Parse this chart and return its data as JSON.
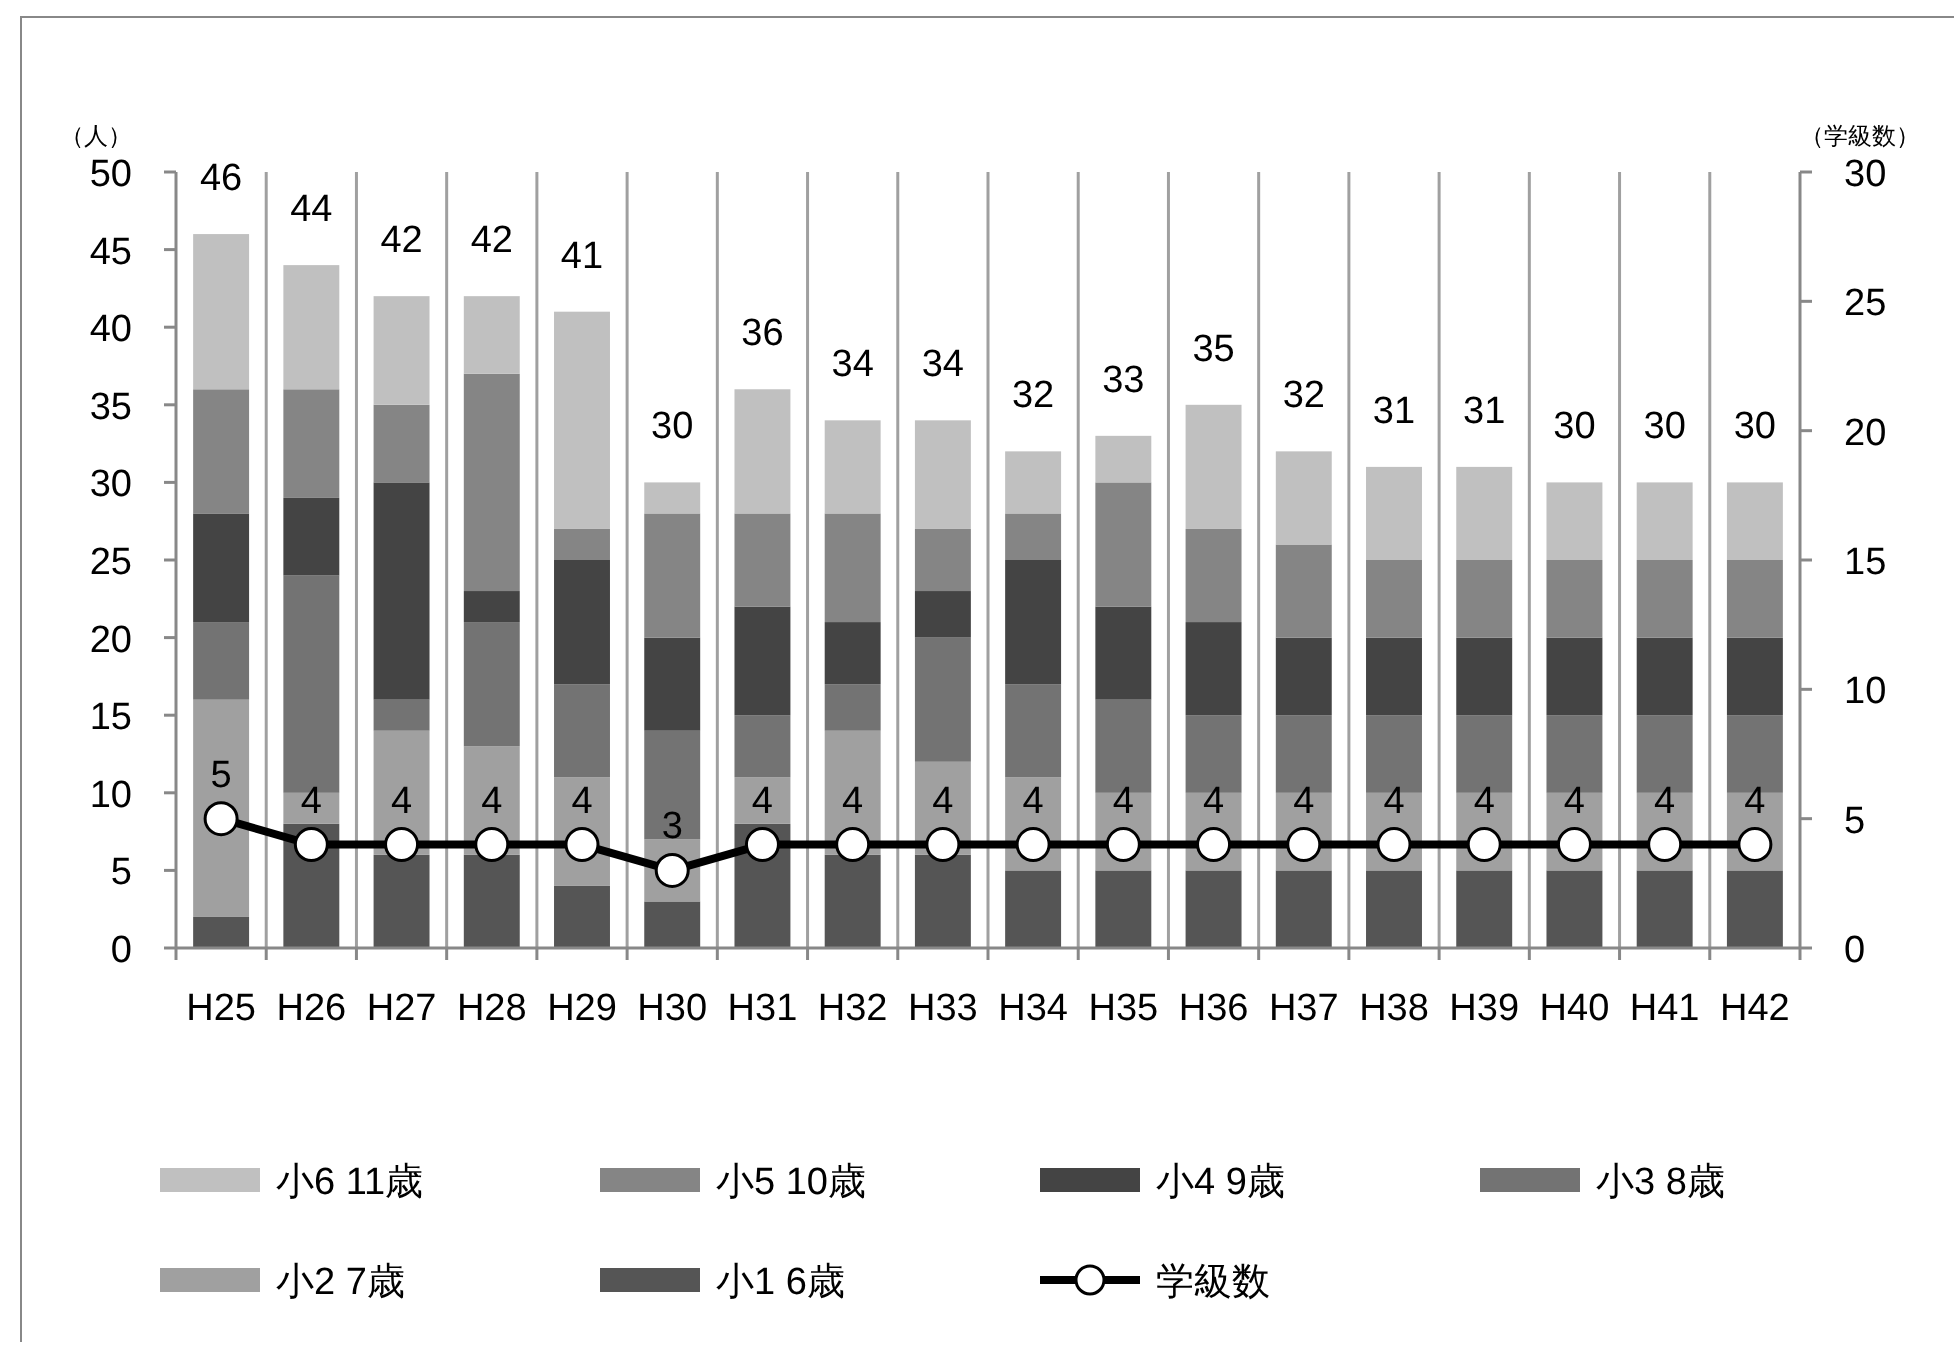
{
  "chart_data": {
    "type": "bar",
    "stacked": true,
    "ylabel": "（人）",
    "y2label": "（学級数）",
    "categories": [
      "H25",
      "H26",
      "H27",
      "H28",
      "H29",
      "H30",
      "H31",
      "H32",
      "H33",
      "H34",
      "H35",
      "H36",
      "H37",
      "H38",
      "H39",
      "H40",
      "H41",
      "H42"
    ],
    "series": [
      {
        "name": "小1 6歳",
        "color": "#555555",
        "values": [
          2,
          8,
          6,
          6,
          4,
          3,
          8,
          6,
          6,
          5,
          5,
          5,
          5,
          5,
          5,
          5,
          5,
          5
        ]
      },
      {
        "name": "小2 7歳",
        "color": "#a0a0a0",
        "values": [
          14,
          2,
          8,
          7,
          7,
          4,
          3,
          8,
          6,
          6,
          5,
          5,
          5,
          5,
          5,
          5,
          5,
          5
        ]
      },
      {
        "name": "小3 8歳",
        "color": "#737373",
        "values": [
          5,
          14,
          2,
          8,
          6,
          7,
          4,
          3,
          8,
          6,
          6,
          5,
          5,
          5,
          5,
          5,
          5,
          5
        ]
      },
      {
        "name": "小4 9歳",
        "color": "#444444",
        "values": [
          7,
          5,
          14,
          2,
          8,
          6,
          7,
          4,
          3,
          8,
          6,
          6,
          5,
          5,
          5,
          5,
          5,
          5
        ]
      },
      {
        "name": "小5 10歳",
        "color": "#858585",
        "values": [
          8,
          7,
          5,
          14,
          2,
          8,
          6,
          7,
          4,
          3,
          8,
          6,
          6,
          5,
          5,
          5,
          5,
          5
        ]
      },
      {
        "name": "小6 11歳",
        "color": "#c0c0c0",
        "values": [
          10,
          8,
          7,
          5,
          14,
          2,
          8,
          6,
          7,
          4,
          3,
          8,
          6,
          6,
          6,
          5,
          5,
          5
        ]
      },
      {
        "name": "学級数",
        "type": "line",
        "axis": "y2",
        "color": "#000000",
        "marker": "circle",
        "values": [
          5,
          4,
          4,
          4,
          4,
          3,
          4,
          4,
          4,
          4,
          4,
          4,
          4,
          4,
          4,
          4,
          4,
          4
        ],
        "value_labels": [
          "5",
          "4",
          "4",
          "4",
          "4",
          "3",
          "4",
          "4",
          "4",
          "4",
          "4",
          "4",
          "4",
          "4",
          "4",
          "4",
          "4",
          "4"
        ]
      }
    ],
    "totals": [
      "46",
      "44",
      "42",
      "42",
      "41",
      "30",
      "36",
      "34",
      "34",
      "32",
      "33",
      "35",
      "32",
      "31",
      "31",
      "30",
      "30",
      "30"
    ],
    "ylim": [
      0,
      50
    ],
    "yticks": [
      0,
      5,
      10,
      15,
      20,
      25,
      30,
      35,
      40,
      45,
      50
    ],
    "y2lim": [
      0,
      30
    ],
    "y2ticks": [
      0,
      5,
      10,
      15,
      20,
      25,
      30
    ],
    "grid": "x",
    "legend": "bottom"
  }
}
